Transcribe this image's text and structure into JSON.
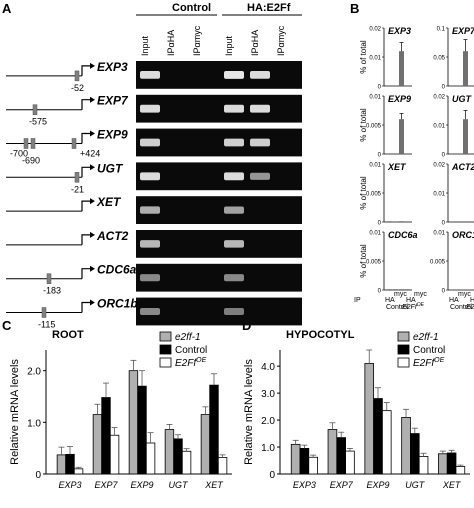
{
  "panels": {
    "A": "A",
    "B": "B",
    "C": "C",
    "D": "D"
  },
  "panel_a": {
    "group_control": "Control",
    "group_treatment": "HA:E2Ff",
    "lanes": [
      "Input",
      "IPαHA",
      "IPαmyc",
      "Input",
      "IPαHA",
      "IPαmyc"
    ],
    "genes": [
      {
        "name": "EXP3",
        "positions": [
          "-52"
        ],
        "bands": [
          0.9,
          0,
          0,
          0.95,
          0.9,
          0
        ]
      },
      {
        "name": "EXP7",
        "positions": [
          "-575"
        ],
        "bands": [
          0.9,
          0,
          0,
          0.9,
          0.9,
          0
        ]
      },
      {
        "name": "EXP9",
        "positions": [
          "-700",
          "-690",
          "+424"
        ],
        "bands": [
          0.85,
          0,
          0,
          0.85,
          0.85,
          0
        ]
      },
      {
        "name": "UGT",
        "positions": [
          "-21"
        ],
        "bands": [
          0.9,
          0,
          0,
          0.9,
          0.6,
          0
        ]
      },
      {
        "name": "XET",
        "positions": [],
        "bands": [
          0.7,
          0,
          0,
          0.65,
          0,
          0
        ]
      },
      {
        "name": "ACT2",
        "positions": [],
        "bands": [
          0.75,
          0,
          0,
          0.75,
          0,
          0
        ]
      },
      {
        "name": "CDC6a",
        "positions": [
          "-183"
        ],
        "bands": [
          0.55,
          0,
          0,
          0.55,
          0,
          0
        ]
      },
      {
        "name": "ORC1b",
        "positions": [
          "-115"
        ],
        "bands": [
          0.55,
          0,
          0,
          0.5,
          0,
          0
        ]
      }
    ]
  },
  "panel_b": {
    "ylabel": "% of total",
    "ip_label": "IP",
    "x_ticks": [
      "HA",
      "myc",
      "HA",
      "myc"
    ],
    "group_labels": [
      "Control",
      "E2Ff"
    ],
    "group_sup": "OE",
    "mini": [
      {
        "gene": "EXP3",
        "ticks": [
          "0.02",
          "0.01",
          "0"
        ],
        "ylim": [
          0,
          0.02
        ],
        "values": [
          0,
          0,
          0.012,
          0
        ],
        "errors": [
          0,
          0,
          0.003,
          0
        ]
      },
      {
        "gene": "EXP7",
        "ticks": [
          "0.1",
          "0.05",
          "0"
        ],
        "ylim": [
          0,
          0.1
        ],
        "values": [
          0,
          0,
          0.06,
          0
        ],
        "errors": [
          0,
          0,
          0.02,
          0
        ]
      },
      {
        "gene": "EXP9",
        "ticks": [
          "0.01",
          "0.005",
          "0"
        ],
        "ylim": [
          0,
          0.01
        ],
        "values": [
          0,
          0,
          0.006,
          0
        ],
        "errors": [
          0,
          0,
          0.001,
          0
        ]
      },
      {
        "gene": "UGT",
        "ticks": [
          "0.02",
          "0.01",
          "0"
        ],
        "ylim": [
          0,
          0.02
        ],
        "values": [
          0,
          0,
          0.012,
          0
        ],
        "errors": [
          0,
          0,
          0.003,
          0
        ]
      },
      {
        "gene": "XET",
        "ticks": [
          "0.01",
          "0.005",
          "0"
        ],
        "ylim": [
          0,
          0.01
        ],
        "values": [
          0.0001,
          0,
          0.0001,
          0
        ],
        "errors": [
          0,
          0,
          0,
          0
        ]
      },
      {
        "gene": "ACT2",
        "ticks": [
          "0.02",
          "0.01",
          "0"
        ],
        "ylim": [
          0,
          0.02
        ],
        "values": [
          0,
          0,
          0,
          0
        ],
        "errors": [
          0,
          0,
          0,
          0
        ]
      },
      {
        "gene": "CDC6a",
        "ticks": [
          "0.01",
          "0.005",
          "0"
        ],
        "ylim": [
          0,
          0.01
        ],
        "values": [
          0.0001,
          0.0001,
          0.0001,
          0.0001
        ],
        "errors": [
          0,
          0,
          0,
          0
        ]
      },
      {
        "gene": "ORC1b",
        "ticks": [
          "0.01",
          "0.005",
          "0"
        ],
        "ylim": [
          0,
          0.01
        ],
        "values": [
          0,
          0,
          0,
          0
        ],
        "errors": [
          0,
          0,
          0,
          0
        ]
      }
    ]
  },
  "colors": {
    "e2ff1": "#b0b0b0",
    "control": "#000000",
    "e2ffoe": "#ffffff",
    "panel_b_bar": "#707070",
    "gel_bg": "#0a0a0a",
    "band": "#f2f2f2"
  },
  "chart_data": [
    {
      "type": "bar",
      "title": "ROOT",
      "ylabel": "Relative mRNA levels",
      "categories": [
        "EXP3",
        "EXP7",
        "EXP9",
        "UGT",
        "XET"
      ],
      "y_ticks": [
        "0",
        "1.0",
        "2.0"
      ],
      "ylim": [
        0,
        2.4
      ],
      "legend": "top-right",
      "series": [
        {
          "name": "e2ff-1",
          "values": [
            0.37,
            1.15,
            2.0,
            0.86,
            1.15
          ],
          "errors": [
            0.15,
            0.2,
            0.2,
            0.1,
            0.15
          ]
        },
        {
          "name": "Control",
          "values": [
            0.38,
            1.48,
            1.7,
            0.68,
            1.72
          ],
          "errors": [
            0.15,
            0.28,
            0.3,
            0.08,
            0.22
          ]
        },
        {
          "name": "E2Ff",
          "sup": "OE",
          "values": [
            0.1,
            0.75,
            0.6,
            0.44,
            0.32
          ],
          "errors": [
            0.03,
            0.15,
            0.2,
            0.05,
            0.05
          ]
        }
      ]
    },
    {
      "type": "bar",
      "title": "HYPOCOTYL",
      "ylabel": "Relative mRNA levels",
      "categories": [
        "EXP3",
        "EXP7",
        "EXP9",
        "UGT",
        "XET"
      ],
      "y_ticks": [
        "0",
        "1.0",
        "2.0",
        "3.0",
        "4.0"
      ],
      "ylim": [
        0,
        4.6
      ],
      "legend": "top-right",
      "series": [
        {
          "name": "e2ff-1",
          "values": [
            1.1,
            1.65,
            4.1,
            2.1,
            0.75
          ],
          "errors": [
            0.15,
            0.25,
            0.5,
            0.3,
            0.1
          ]
        },
        {
          "name": "Control",
          "values": [
            0.95,
            1.35,
            2.8,
            1.5,
            0.78
          ],
          "errors": [
            0.12,
            0.2,
            0.4,
            0.2,
            0.1
          ]
        },
        {
          "name": "E2Ff",
          "sup": "OE",
          "values": [
            0.62,
            0.85,
            2.35,
            0.65,
            0.28
          ],
          "errors": [
            0.08,
            0.1,
            0.3,
            0.12,
            0.05
          ]
        }
      ]
    }
  ]
}
